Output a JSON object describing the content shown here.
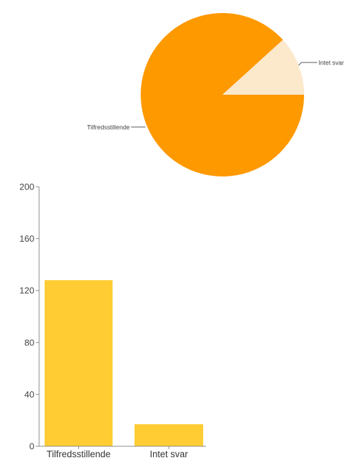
{
  "chart_data": [
    {
      "type": "pie",
      "slices": [
        {
          "label": "Tilfredsstillende",
          "value": 128,
          "color": "#FF9900"
        },
        {
          "label": "Intet svar",
          "value": 17,
          "color": "#FCE8CB"
        }
      ]
    },
    {
      "type": "bar",
      "categories": [
        "Tilfredsstillende",
        "Intet svar"
      ],
      "values": [
        128,
        17
      ],
      "ylim": [
        0,
        200
      ],
      "yticks": [
        0,
        40,
        80,
        120,
        160,
        200
      ],
      "bar_color": "#FFCC33",
      "axis_color": "#888888",
      "grid": false
    }
  ]
}
